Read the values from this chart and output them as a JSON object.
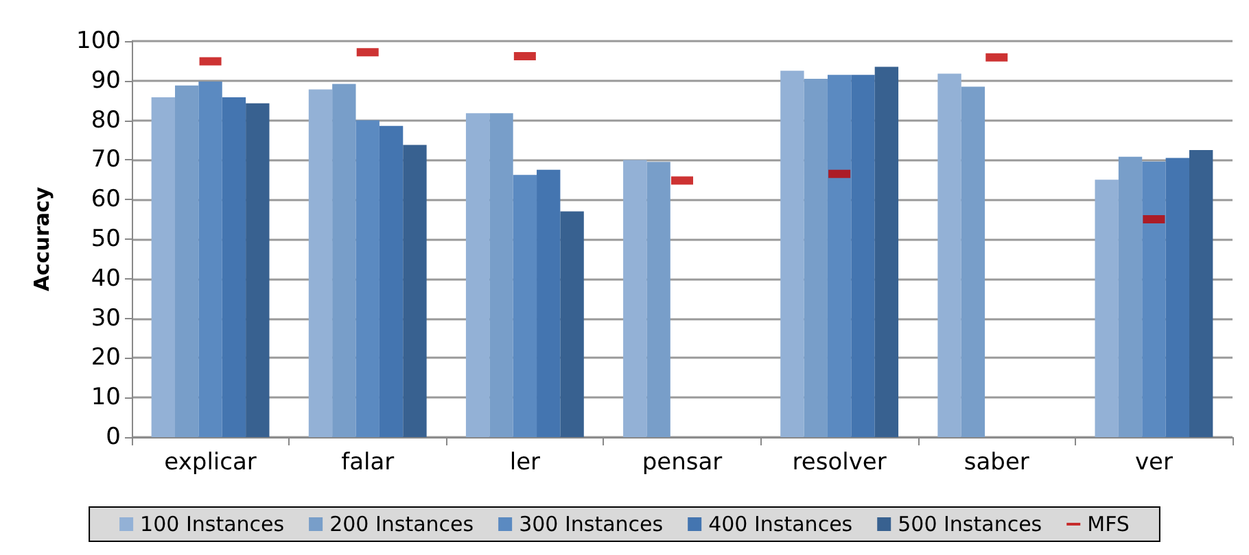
{
  "chart_data": {
    "type": "bar",
    "ylabel": "Accuracy",
    "categories": [
      "explicar",
      "falar",
      "ler",
      "pensar",
      "resolver",
      "saber",
      "ver"
    ],
    "series": [
      {
        "name": "100 Instances",
        "color": "#93b1d6",
        "values": [
          85.8,
          87.8,
          81.8,
          70,
          92.5,
          91.8,
          65
        ]
      },
      {
        "name": "200 Instances",
        "color": "#789ec9",
        "values": [
          88.8,
          89.2,
          81.8,
          69.5,
          90.5,
          88.5,
          70.8
        ]
      },
      {
        "name": "300 Instances",
        "color": "#5b8ac1",
        "values": [
          89.8,
          80,
          66.2,
          null,
          91.5,
          null,
          69.6
        ]
      },
      {
        "name": "400 Instances",
        "color": "#4475b0",
        "values": [
          85.8,
          78.6,
          67.5,
          null,
          91.5,
          null,
          70.5
        ]
      },
      {
        "name": "500 Instances",
        "color": "#386190",
        "values": [
          84.3,
          73.8,
          57,
          null,
          93.5,
          null,
          72.5
        ]
      },
      {
        "name": "MFS",
        "type": "scatter",
        "marker": "square",
        "color": "#c00000",
        "x": [
          "explicar",
          "falar",
          "ler",
          "pensar",
          "resolver",
          "saber",
          "ver"
        ],
        "values": [
          94.9,
          97.2,
          96.2,
          64.8,
          66.5,
          95.9,
          55
        ]
      }
    ],
    "ylim": [
      0,
      100
    ],
    "yticks": [
      0,
      10,
      20,
      30,
      40,
      50,
      60,
      70,
      80,
      90,
      100
    ],
    "grid": "y",
    "legend": "bottom"
  }
}
